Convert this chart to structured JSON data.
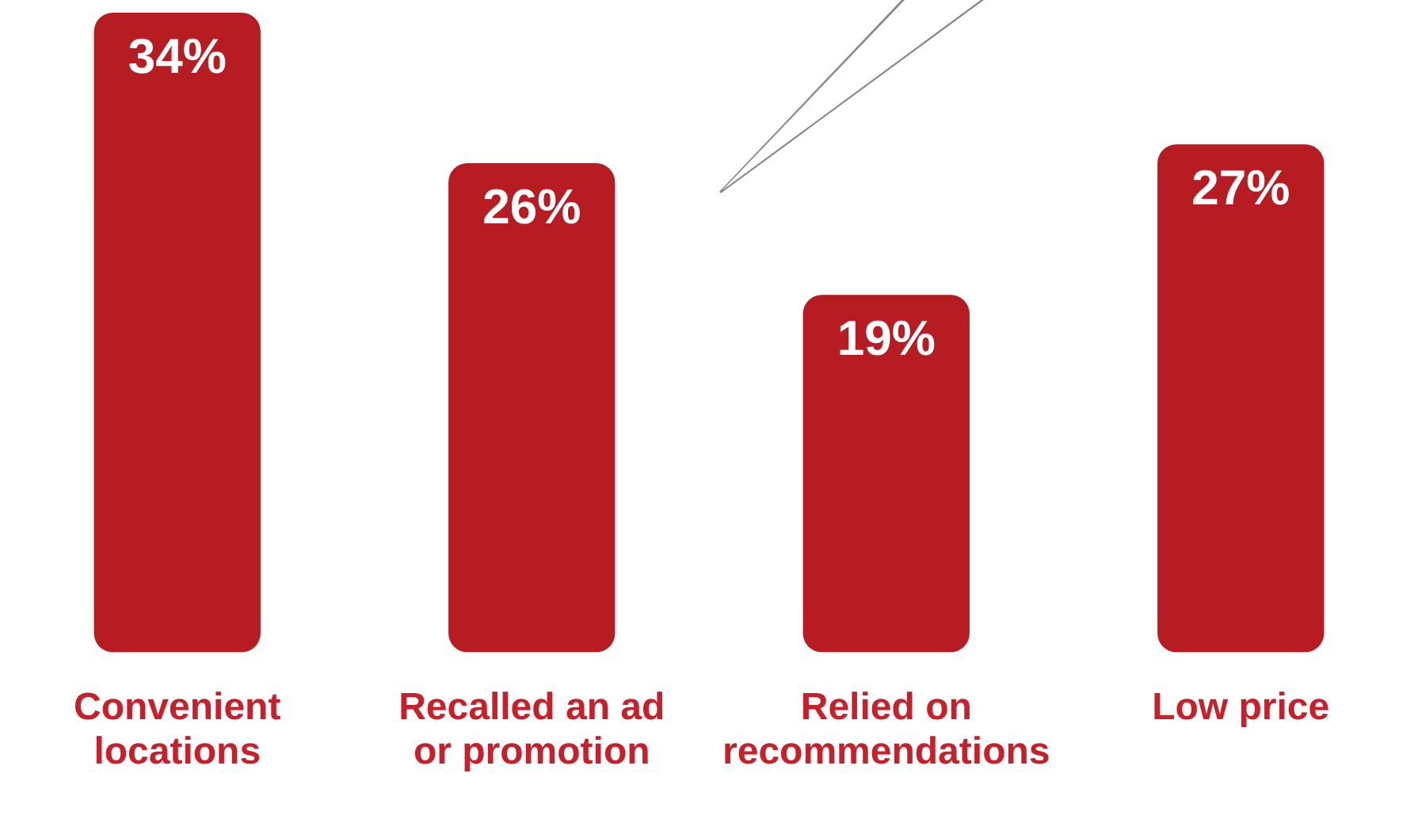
{
  "chart_data": {
    "type": "bar",
    "categories": [
      "Convenient locations",
      "Recalled an ad or promotion",
      "Relied on recommendations",
      "Low price"
    ],
    "values": [
      34,
      26,
      19,
      27
    ],
    "color": "#b81c23",
    "value_labels": [
      "34%",
      "26%",
      "19%",
      "27%"
    ]
  }
}
